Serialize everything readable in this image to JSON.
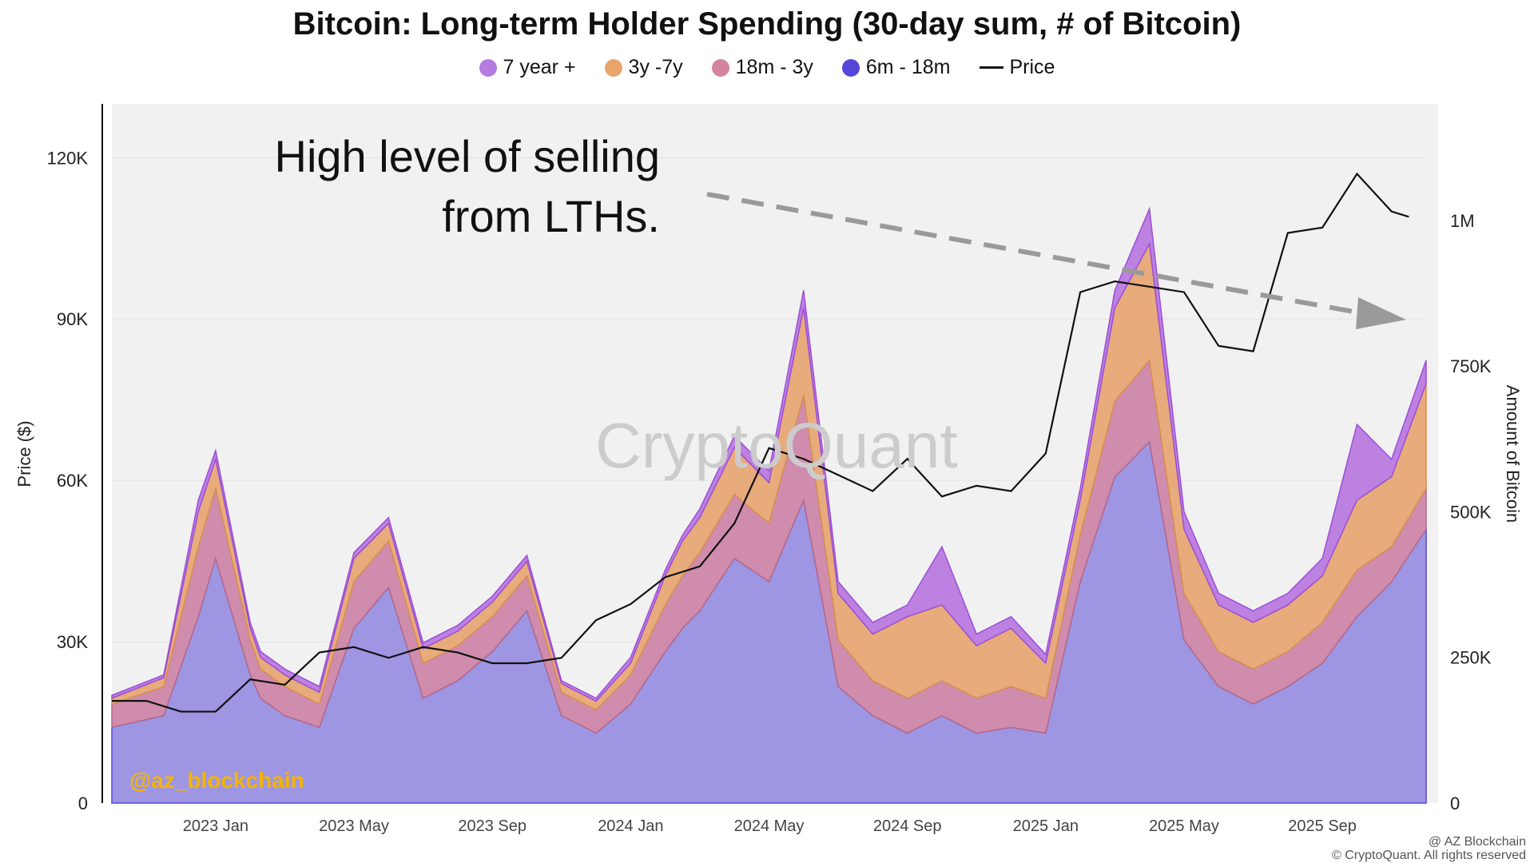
{
  "chart_data": {
    "type": "area",
    "title": "Bitcoin: Long-term Holder Spending (30-day sum, # of Bitcoin)",
    "ylabel_left": "Price ($)",
    "ylabel_right": "Amount of Bitcoin",
    "y_left_ticks": [
      "0",
      "30K",
      "60K",
      "90K",
      "120K"
    ],
    "y_left_lim": [
      0,
      130000
    ],
    "y_right_ticks": [
      "0",
      "250K",
      "500K",
      "750K",
      "1M"
    ],
    "y_right_lim": [
      0,
      1200000
    ],
    "x_ticks": [
      "2023 Jan",
      "2023 May",
      "2023 Sep",
      "2024 Jan",
      "2024 May",
      "2024 Sep",
      "2025 Jan",
      "2025 May",
      "2025 Sep"
    ],
    "legend": [
      {
        "name": "7 year +",
        "color": "#b57be0"
      },
      {
        "name": "3y -7y",
        "color": "#e8a46a"
      },
      {
        "name": "18m - 3y",
        "color": "#d3849f"
      },
      {
        "name": "6m - 18m",
        "color": "#5545d8"
      },
      {
        "name": "Price",
        "color": "#111111"
      }
    ],
    "x_months": [
      0,
      1.5,
      2.5,
      3,
      4,
      4.3,
      5,
      6,
      7,
      8,
      9,
      10,
      11,
      12,
      13,
      14,
      15,
      16,
      16.5,
      17,
      18,
      19,
      20,
      21,
      22,
      23,
      24,
      25,
      26,
      27,
      28,
      29,
      30,
      31,
      32,
      33,
      34,
      35,
      36,
      37,
      38
    ],
    "series": [
      {
        "name": "6m - 18m",
        "values": [
          130,
          150,
          320,
          420,
          220,
          180,
          150,
          130,
          300,
          370,
          180,
          210,
          260,
          330,
          150,
          120,
          170,
          260,
          300,
          330,
          420,
          380,
          520,
          200,
          150,
          120,
          150,
          120,
          130,
          120,
          380,
          560,
          620,
          280,
          200,
          170,
          200,
          240,
          320,
          380,
          470
        ]
      },
      {
        "name": "18m - 3y",
        "values": [
          40,
          50,
          120,
          120,
          60,
          50,
          50,
          40,
          80,
          80,
          60,
          60,
          60,
          60,
          40,
          40,
          50,
          80,
          90,
          100,
          110,
          100,
          180,
          80,
          60,
          60,
          60,
          60,
          70,
          60,
          80,
          130,
          140,
          80,
          60,
          60,
          60,
          70,
          80,
          60,
          70
        ]
      },
      {
        "name": "3y -7y",
        "values": [
          10,
          15,
          60,
          50,
          20,
          20,
          20,
          20,
          40,
          30,
          25,
          25,
          25,
          25,
          15,
          15,
          20,
          50,
          60,
          60,
          80,
          70,
          150,
          80,
          80,
          140,
          130,
          90,
          100,
          60,
          60,
          160,
          200,
          110,
          80,
          80,
          80,
          80,
          120,
          120,
          180
        ]
      },
      {
        "name": "7 year +",
        "values": [
          5,
          5,
          20,
          15,
          10,
          10,
          10,
          10,
          10,
          10,
          10,
          10,
          10,
          10,
          5,
          5,
          10,
          10,
          10,
          15,
          20,
          20,
          30,
          20,
          20,
          20,
          100,
          20,
          20,
          15,
          20,
          30,
          60,
          30,
          20,
          20,
          20,
          30,
          130,
          30,
          40
        ]
      }
    ],
    "price": {
      "x_months": [
        0,
        1,
        2,
        3,
        4,
        5,
        6,
        7,
        8,
        9,
        10,
        11,
        12,
        13,
        14,
        15,
        16,
        17,
        18,
        19,
        20,
        21,
        22,
        23,
        24,
        25,
        26,
        27,
        28,
        29,
        30,
        31,
        32,
        33,
        34,
        35,
        36,
        37,
        37.5
      ],
      "values": [
        19000,
        19000,
        17000,
        17000,
        23000,
        22000,
        28000,
        29000,
        27000,
        29000,
        28000,
        26000,
        26000,
        27000,
        34000,
        37000,
        42000,
        44000,
        52000,
        66000,
        64000,
        61000,
        58000,
        64000,
        57000,
        59000,
        58000,
        65000,
        95000,
        97000,
        96000,
        95000,
        85000,
        84000,
        106000,
        107000,
        117000,
        110000,
        109000
      ]
    },
    "annotation": "High level of selling from LTHs.",
    "annotation_lines": [
      "High level of selling",
      "from LTHs."
    ],
    "watermark": "CryptoQuant",
    "credit": "@az_blockchain",
    "copyright": "© CryptoQuant. All rights reserved",
    "brand_tag": "@ AZ Blockchain",
    "grid": true
  }
}
